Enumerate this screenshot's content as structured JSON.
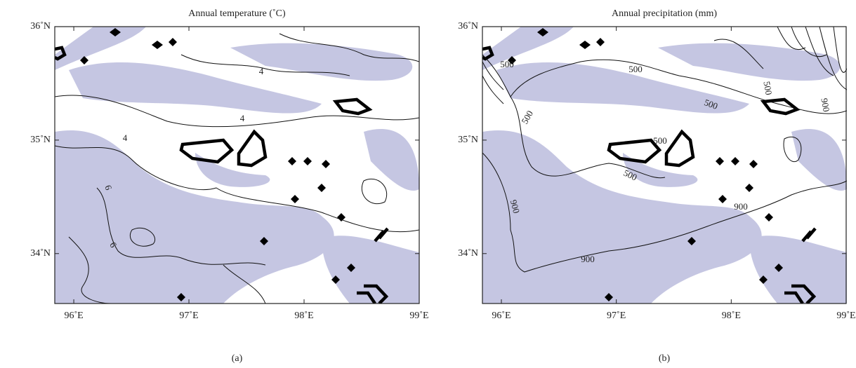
{
  "panels": [
    {
      "title": "Annual temperature (˚C)",
      "label": "(a)",
      "xlim": [
        95.835,
        99.0
      ],
      "ylim": [
        33.56,
        36.0
      ],
      "xticks": [
        {
          "value": 96,
          "label": "96˚E"
        },
        {
          "value": 97,
          "label": "97˚E"
        },
        {
          "value": 98,
          "label": "98˚E"
        },
        {
          "value": 99,
          "label": "99˚E"
        }
      ],
      "yticks": [
        {
          "value": 34,
          "label": "34˚N"
        },
        {
          "value": 35,
          "label": "35˚N"
        },
        {
          "value": 36,
          "label": "36˚N"
        }
      ],
      "contour_labels": [
        "4",
        "4",
        "4",
        "6",
        "6"
      ]
    },
    {
      "title": "Annual precipitation (mm)",
      "label": "(b)",
      "xlim": [
        95.835,
        99.0
      ],
      "ylim": [
        33.56,
        36.0
      ],
      "xticks": [
        {
          "value": 96,
          "label": "96˚E"
        },
        {
          "value": 97,
          "label": "97˚E"
        },
        {
          "value": 98,
          "label": "98˚E"
        },
        {
          "value": 99,
          "label": "99˚E"
        }
      ],
      "yticks": [
        {
          "value": 34,
          "label": "34˚N"
        },
        {
          "value": 35,
          "label": "35˚N"
        },
        {
          "value": 36,
          "label": "36˚N"
        }
      ],
      "contour_labels": [
        "500",
        "500",
        "500",
        "500",
        "500",
        "500",
        "500",
        "900",
        "900",
        "900",
        "900"
      ]
    }
  ]
}
